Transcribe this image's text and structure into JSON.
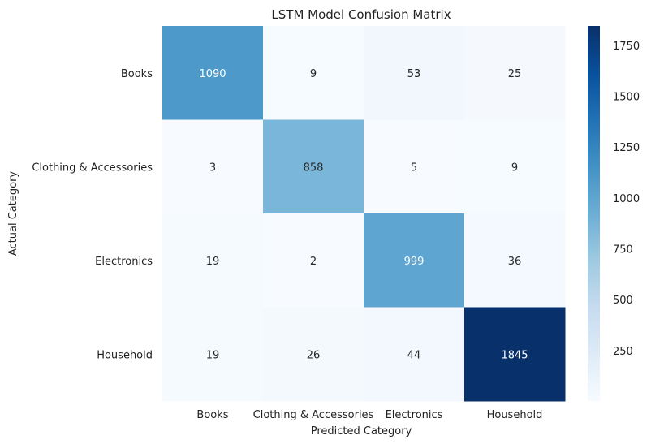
{
  "chart_data": {
    "type": "heatmap",
    "title": "LSTM Model Confusion Matrix",
    "xlabel": "Predicted Category",
    "ylabel": "Actual Category",
    "x_categories": [
      "Books",
      "Clothing & Accessories",
      "Electronics",
      "Household"
    ],
    "y_categories": [
      "Books",
      "Clothing & Accessories",
      "Electronics",
      "Household"
    ],
    "values": [
      [
        1090,
        9,
        53,
        25
      ],
      [
        3,
        858,
        5,
        9
      ],
      [
        19,
        2,
        999,
        36
      ],
      [
        19,
        26,
        44,
        1845
      ]
    ],
    "colorbar": {
      "min": 2,
      "max": 1845,
      "ticks": [
        250,
        500,
        750,
        1000,
        1250,
        1500,
        1750
      ],
      "colormap": "Blues"
    },
    "grid": false,
    "legend": "colorbar-right"
  }
}
